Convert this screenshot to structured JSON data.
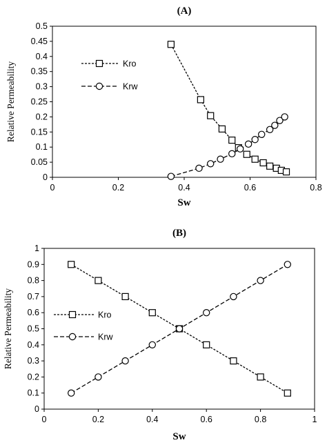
{
  "chart_data": [
    {
      "type": "line",
      "title": "(A)",
      "xlabel": "Sw",
      "ylabel": "Relative Permeability",
      "xlim": [
        0,
        0.8
      ],
      "ylim": [
        0,
        0.5
      ],
      "xticks": [
        "0",
        "0.2",
        "0.4",
        "0.6",
        "0.8"
      ],
      "yticks": [
        "0",
        "0.05",
        "0.1",
        "0.15",
        "0.2",
        "0.25",
        "0.3",
        "0.35",
        "0.4",
        "0.45",
        "0.5"
      ],
      "legend_position": "upper-left",
      "grid": false,
      "series": [
        {
          "name": "Kro",
          "marker": "square",
          "x": [
            0.36,
            0.45,
            0.48,
            0.515,
            0.545,
            0.565,
            0.59,
            0.615,
            0.64,
            0.66,
            0.68,
            0.695,
            0.71
          ],
          "y": [
            0.44,
            0.257,
            0.204,
            0.16,
            0.123,
            0.098,
            0.076,
            0.06,
            0.048,
            0.037,
            0.03,
            0.023,
            0.018
          ]
        },
        {
          "name": "Krw",
          "marker": "circle",
          "x": [
            0.36,
            0.445,
            0.48,
            0.51,
            0.545,
            0.57,
            0.595,
            0.615,
            0.635,
            0.66,
            0.675,
            0.69,
            0.705
          ],
          "y": [
            0.003,
            0.03,
            0.045,
            0.06,
            0.078,
            0.094,
            0.11,
            0.125,
            0.142,
            0.158,
            0.172,
            0.188,
            0.2
          ]
        }
      ]
    },
    {
      "type": "line",
      "title": "(B)",
      "xlabel": "Sw",
      "ylabel": "Relative Permeability",
      "xlim": [
        0,
        1
      ],
      "ylim": [
        0,
        1
      ],
      "xticks": [
        "0",
        "0.2",
        "0.4",
        "0.6",
        "0.8",
        "1"
      ],
      "yticks": [
        "0",
        "0.1",
        "0.2",
        "0.3",
        "0.4",
        "0.5",
        "0.6",
        "0.7",
        "0.8",
        "0.9",
        "1"
      ],
      "legend_position": "middle-left",
      "grid": false,
      "series": [
        {
          "name": "Kro",
          "marker": "square",
          "x": [
            0.1,
            0.2,
            0.3,
            0.4,
            0.5,
            0.6,
            0.7,
            0.8,
            0.9
          ],
          "y": [
            0.9,
            0.8,
            0.7,
            0.6,
            0.5,
            0.4,
            0.3,
            0.2,
            0.1
          ]
        },
        {
          "name": "Krw",
          "marker": "circle",
          "x": [
            0.1,
            0.2,
            0.3,
            0.4,
            0.5,
            0.6,
            0.7,
            0.8,
            0.9
          ],
          "y": [
            0.1,
            0.2,
            0.3,
            0.4,
            0.5,
            0.6,
            0.7,
            0.8,
            0.9
          ]
        }
      ]
    }
  ]
}
